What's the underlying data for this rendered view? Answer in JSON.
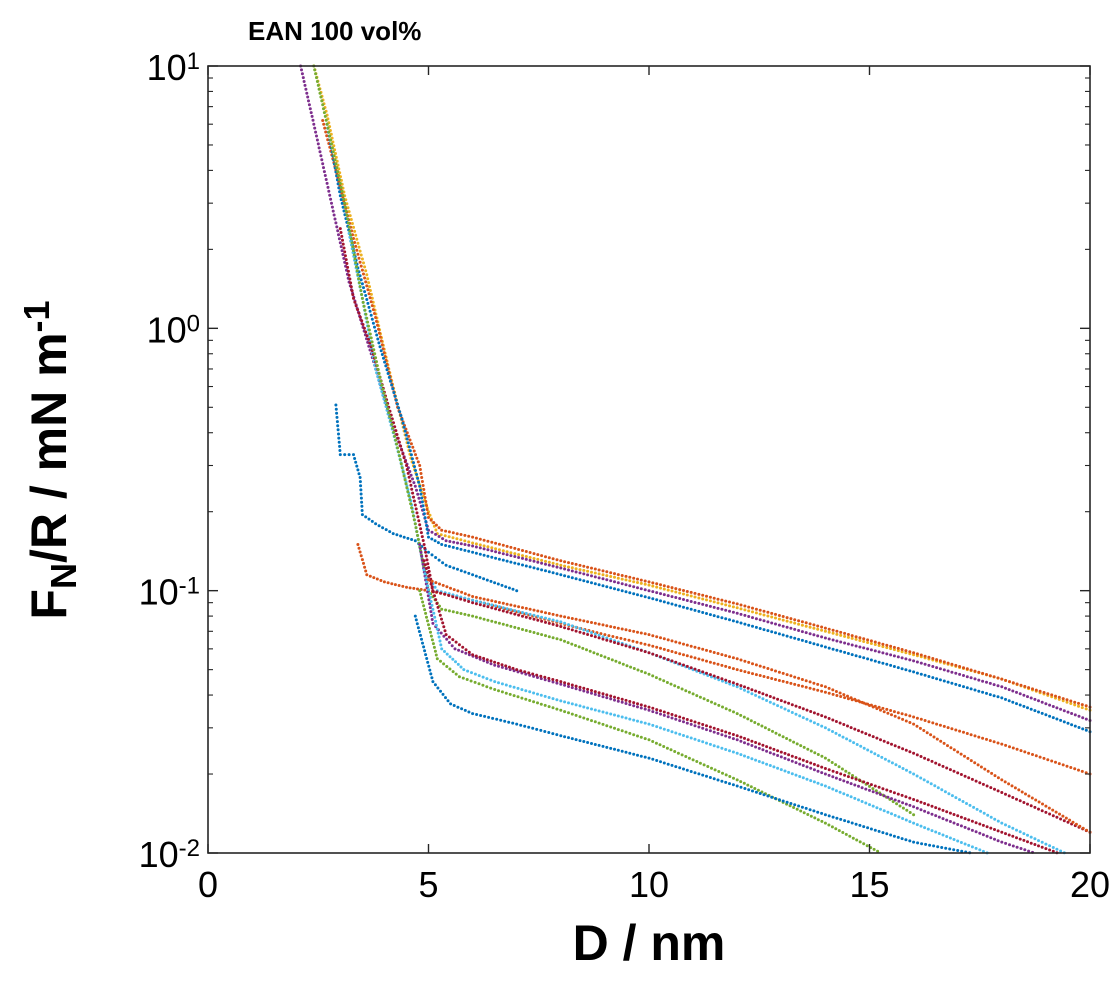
{
  "chart_data": {
    "type": "scatter",
    "title": "EAN 100 vol%",
    "xlabel": "D / nm",
    "ylabel": {
      "base": "F",
      "sub": "N",
      "mid": "/R / mN m",
      "sup": "-1"
    },
    "xlim": [
      0,
      20
    ],
    "ylim": [
      0.01,
      10
    ],
    "yscale": "log",
    "grid": false,
    "x_ticks": [
      "0",
      "5",
      "10",
      "15",
      "20"
    ],
    "y_ticks": [
      {
        "value": 0.01,
        "base": "10",
        "exp": "-2"
      },
      {
        "value": 0.1,
        "base": "10",
        "exp": "-1"
      },
      {
        "value": 1,
        "base": "10",
        "exp": "0"
      },
      {
        "value": 10,
        "base": "10",
        "exp": "1"
      }
    ],
    "series": [
      {
        "color": "#EDB120",
        "x": [
          2.4,
          2.7,
          3.1,
          3.6,
          4.1,
          4.6,
          5.0,
          5.2,
          6,
          8,
          10,
          12,
          14,
          16,
          18,
          20
        ],
        "y": [
          10,
          6.5,
          3.2,
          1.6,
          0.7,
          0.32,
          0.2,
          0.165,
          0.152,
          0.125,
          0.105,
          0.086,
          0.07,
          0.057,
          0.046,
          0.035
        ]
      },
      {
        "color": "#D95319",
        "x": [
          2.6,
          2.9,
          3.3,
          3.8,
          4.3,
          4.8,
          5.0,
          5.3,
          6,
          8,
          10,
          12,
          14,
          16,
          18,
          20
        ],
        "y": [
          6.2,
          4.0,
          2.2,
          1.1,
          0.5,
          0.3,
          0.19,
          0.17,
          0.16,
          0.13,
          0.108,
          0.089,
          0.072,
          0.058,
          0.046,
          0.036
        ]
      },
      {
        "color": "#7E2F8E",
        "x": [
          2.1,
          2.4,
          2.8,
          3.2,
          3.7,
          4.2,
          4.7,
          5.0,
          5.4,
          6,
          8,
          10,
          12,
          14,
          16,
          18,
          20
        ],
        "y": [
          10,
          6.0,
          3.0,
          1.5,
          0.8,
          0.42,
          0.25,
          0.17,
          0.155,
          0.148,
          0.122,
          0.1,
          0.082,
          0.066,
          0.054,
          0.043,
          0.032
        ]
      },
      {
        "color": "#0072BD",
        "x": [
          2.7,
          3.0,
          3.4,
          3.9,
          4.4,
          4.8,
          5.0,
          5.3,
          6,
          8,
          10,
          12,
          14,
          16,
          18,
          20
        ],
        "y": [
          6.0,
          3.2,
          1.7,
          0.85,
          0.45,
          0.25,
          0.16,
          0.15,
          0.14,
          0.115,
          0.094,
          0.076,
          0.061,
          0.049,
          0.039,
          0.029
        ]
      },
      {
        "color": "#D95319",
        "x": [
          3.4,
          3.6,
          4.0,
          4.5,
          5.0,
          6,
          7,
          8,
          9,
          10,
          12,
          14,
          16,
          18,
          20
        ],
        "y": [
          0.15,
          0.115,
          0.108,
          0.103,
          0.1,
          0.092,
          0.083,
          0.075,
          0.068,
          0.062,
          0.05,
          0.041,
          0.033,
          0.026,
          0.02
        ]
      },
      {
        "color": "#0072BD",
        "x": [
          2.9,
          3.0,
          3.3,
          3.45,
          3.5,
          3.8,
          4.2,
          4.7,
          5.0,
          5.4,
          6,
          7
        ],
        "y": [
          0.51,
          0.33,
          0.33,
          0.27,
          0.195,
          0.18,
          0.165,
          0.155,
          0.14,
          0.125,
          0.115,
          0.1
        ]
      },
      {
        "color": "#4DBEEE",
        "x": [
          3.2,
          3.5,
          3.8,
          4.2,
          4.6,
          4.9,
          5.2,
          6,
          8,
          10,
          12,
          14,
          16,
          18,
          20
        ],
        "y": [
          2.3,
          1.3,
          0.7,
          0.4,
          0.22,
          0.12,
          0.1,
          0.092,
          0.076,
          0.058,
          0.043,
          0.03,
          0.02,
          0.013,
          0.009
        ]
      },
      {
        "color": "#A2142F",
        "x": [
          3.0,
          3.3,
          3.7,
          4.1,
          4.5,
          4.9,
          5.1,
          6,
          8,
          10,
          12,
          14,
          16,
          18,
          20
        ],
        "y": [
          2.4,
          1.3,
          0.85,
          0.5,
          0.3,
          0.15,
          0.1,
          0.09,
          0.073,
          0.058,
          0.044,
          0.033,
          0.024,
          0.017,
          0.012
        ]
      },
      {
        "color": "#77AC30",
        "x": [
          2.4,
          2.7,
          3.1,
          3.5,
          3.9,
          4.3,
          4.7,
          5.0,
          5.3,
          6,
          8,
          10,
          12,
          14,
          16
        ],
        "y": [
          10,
          6.0,
          3.0,
          1.3,
          0.65,
          0.35,
          0.18,
          0.1,
          0.085,
          0.08,
          0.065,
          0.048,
          0.034,
          0.023,
          0.014
        ]
      },
      {
        "color": "#7E2F8E",
        "x": [
          4.8,
          5.1,
          5.6,
          6.5,
          8,
          10,
          12,
          14,
          16,
          18,
          20
        ],
        "y": [
          0.15,
          0.075,
          0.06,
          0.052,
          0.044,
          0.035,
          0.027,
          0.02,
          0.015,
          0.011,
          0.0085
        ]
      },
      {
        "color": "#4DBEEE",
        "x": [
          4.9,
          5.3,
          5.8,
          6.5,
          8,
          10,
          12,
          14,
          16,
          18
        ],
        "y": [
          0.12,
          0.06,
          0.05,
          0.045,
          0.038,
          0.031,
          0.024,
          0.018,
          0.013,
          0.0095
        ]
      },
      {
        "color": "#A2142F",
        "x": [
          4.9,
          5.4,
          6.0,
          7,
          8,
          10,
          12,
          14,
          16,
          18,
          20
        ],
        "y": [
          0.13,
          0.068,
          0.057,
          0.05,
          0.045,
          0.036,
          0.028,
          0.021,
          0.016,
          0.012,
          0.009
        ]
      },
      {
        "color": "#77AC30",
        "x": [
          4.8,
          5.2,
          5.7,
          6.5,
          8,
          10,
          12,
          14,
          15.5
        ],
        "y": [
          0.1,
          0.055,
          0.047,
          0.042,
          0.035,
          0.027,
          0.019,
          0.013,
          0.0095
        ]
      },
      {
        "color": "#0072BD",
        "x": [
          4.7,
          5.1,
          5.5,
          6,
          7,
          8,
          10,
          12,
          14,
          16,
          18,
          19
        ],
        "y": [
          0.08,
          0.045,
          0.037,
          0.034,
          0.031,
          0.028,
          0.023,
          0.018,
          0.014,
          0.011,
          0.0095,
          0.009
        ]
      },
      {
        "color": "#D95319",
        "x": [
          5.0,
          6,
          8,
          10,
          12,
          14,
          16,
          18,
          20
        ],
        "y": [
          0.11,
          0.095,
          0.08,
          0.068,
          0.055,
          0.043,
          0.031,
          0.019,
          0.012
        ]
      }
    ]
  }
}
